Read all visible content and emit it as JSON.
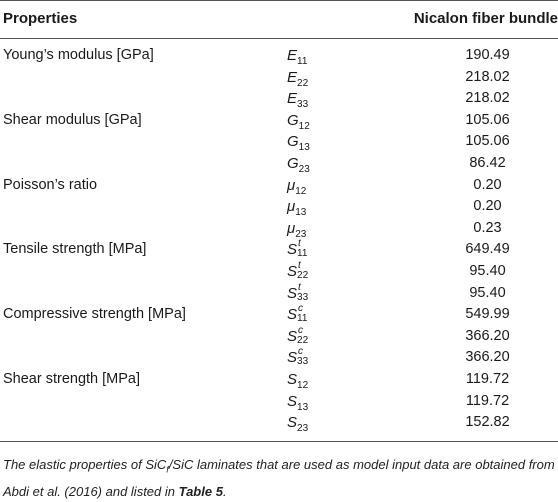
{
  "table": {
    "header": {
      "properties": "Properties",
      "bundle": "Nicalon fiber bundle"
    },
    "rows": [
      {
        "property": "Young’s modulus [GPa]",
        "base": "E",
        "sup": "",
        "sub": "11",
        "value": "190.49"
      },
      {
        "property": "",
        "base": "E",
        "sup": "",
        "sub": "22",
        "value": "218.02"
      },
      {
        "property": "",
        "base": "E",
        "sup": "",
        "sub": "33",
        "value": "218.02"
      },
      {
        "property": "Shear modulus [GPa]",
        "base": "G",
        "sup": "",
        "sub": "12",
        "value": "105.06"
      },
      {
        "property": "",
        "base": "G",
        "sup": "",
        "sub": "13",
        "value": "105.06"
      },
      {
        "property": "",
        "base": "G",
        "sup": "",
        "sub": "23",
        "value": "86.42"
      },
      {
        "property": "Poisson’s ratio",
        "base": "μ",
        "sup": "",
        "sub": "12",
        "value": "0.20"
      },
      {
        "property": "",
        "base": "μ",
        "sup": "",
        "sub": "13",
        "value": "0.20"
      },
      {
        "property": "",
        "base": "μ",
        "sup": "",
        "sub": "23",
        "value": "0.23"
      },
      {
        "property": "Tensile strength [MPa]",
        "base": "S",
        "sup": "t",
        "sub": "11",
        "value": "649.49"
      },
      {
        "property": "",
        "base": "S",
        "sup": "t",
        "sub": "22",
        "value": "95.40"
      },
      {
        "property": "",
        "base": "S",
        "sup": "t",
        "sub": "33",
        "value": "95.40"
      },
      {
        "property": "Compressive strength [MPa]",
        "base": "S",
        "sup": "c",
        "sub": "11",
        "value": "549.99"
      },
      {
        "property": "",
        "base": "S",
        "sup": "c",
        "sub": "22",
        "value": "366.20"
      },
      {
        "property": "",
        "base": "S",
        "sup": "c",
        "sub": "33",
        "value": "366.20"
      },
      {
        "property": "Shear strength [MPa]",
        "base": "S",
        "sup": "",
        "sub": "12",
        "value": "119.72"
      },
      {
        "property": "",
        "base": "S",
        "sup": "",
        "sub": "13",
        "value": "119.72"
      },
      {
        "property": "",
        "base": "S",
        "sup": "",
        "sub": "23",
        "value": "152.82"
      }
    ]
  },
  "caption": {
    "part1": "The elastic properties of SiC",
    "part1_sub": "f",
    "part2": "/SiC laminates that are used as model input data are obtained from Abdi et al. (2016) and listed in ",
    "table_ref": "Table 5",
    "part3": "."
  }
}
